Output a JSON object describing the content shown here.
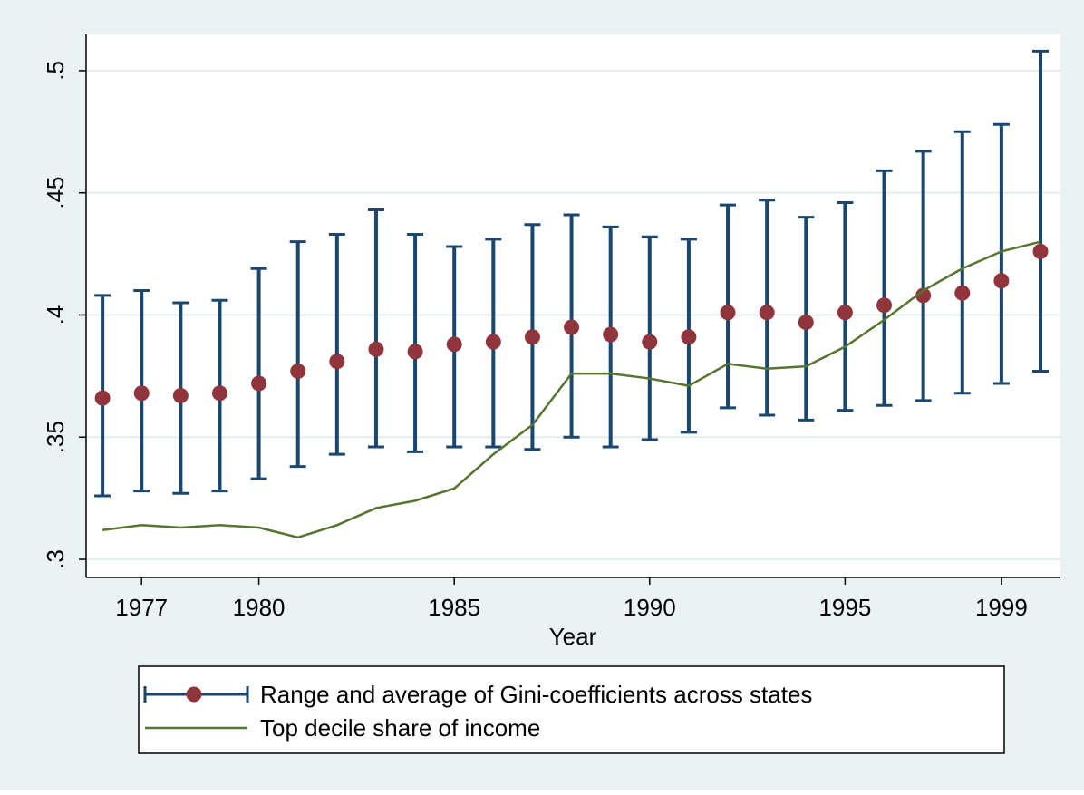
{
  "chart_data": {
    "type": "line",
    "x_label": "Year",
    "x": [
      1976,
      1977,
      1978,
      1979,
      1980,
      1981,
      1982,
      1983,
      1984,
      1985,
      1986,
      1987,
      1988,
      1989,
      1990,
      1991,
      1992,
      1993,
      1994,
      1995,
      1996,
      1997,
      1998,
      1999,
      2000
    ],
    "xlim": [
      1975.58,
      2000.51
    ],
    "xticks": [
      1977,
      1980,
      1985,
      1990,
      1995,
      1999
    ],
    "ylim": [
      0.2926,
      0.5148
    ],
    "yticks": [
      {
        "value": 0.3,
        "label": ".3"
      },
      {
        "value": 0.35,
        "label": ".35"
      },
      {
        "value": 0.4,
        "label": ".4"
      },
      {
        "value": 0.45,
        "label": ".45"
      },
      {
        "value": 0.5,
        "label": ".5"
      }
    ],
    "grid": true,
    "series": [
      {
        "name": "Range and average of Gini-coefficients across states",
        "type": "errorbar",
        "color": "#1a476f",
        "marker_color": "#90353b",
        "values": [
          0.366,
          0.368,
          0.367,
          0.368,
          0.372,
          0.377,
          0.381,
          0.386,
          0.385,
          0.388,
          0.389,
          0.391,
          0.395,
          0.392,
          0.389,
          0.391,
          0.401,
          0.401,
          0.397,
          0.401,
          0.404,
          0.408,
          0.409,
          0.414,
          0.426
        ],
        "low": [
          0.326,
          0.328,
          0.327,
          0.328,
          0.333,
          0.338,
          0.343,
          0.346,
          0.344,
          0.346,
          0.346,
          0.345,
          0.35,
          0.346,
          0.349,
          0.352,
          0.362,
          0.359,
          0.357,
          0.361,
          0.363,
          0.365,
          0.368,
          0.372,
          0.377
        ],
        "high": [
          0.408,
          0.41,
          0.405,
          0.406,
          0.419,
          0.43,
          0.433,
          0.443,
          0.433,
          0.428,
          0.431,
          0.437,
          0.441,
          0.436,
          0.432,
          0.431,
          0.445,
          0.447,
          0.44,
          0.446,
          0.459,
          0.467,
          0.475,
          0.478,
          0.508
        ]
      },
      {
        "name": "Top decile share of income",
        "type": "line",
        "color": "#55752f",
        "values": [
          0.312,
          0.314,
          0.313,
          0.314,
          0.313,
          0.309,
          0.314,
          0.321,
          0.324,
          0.329,
          0.343,
          0.355,
          0.376,
          0.376,
          0.374,
          0.371,
          0.38,
          0.378,
          0.379,
          0.387,
          0.398,
          0.41,
          0.419,
          0.426,
          0.43
        ]
      }
    ]
  }
}
